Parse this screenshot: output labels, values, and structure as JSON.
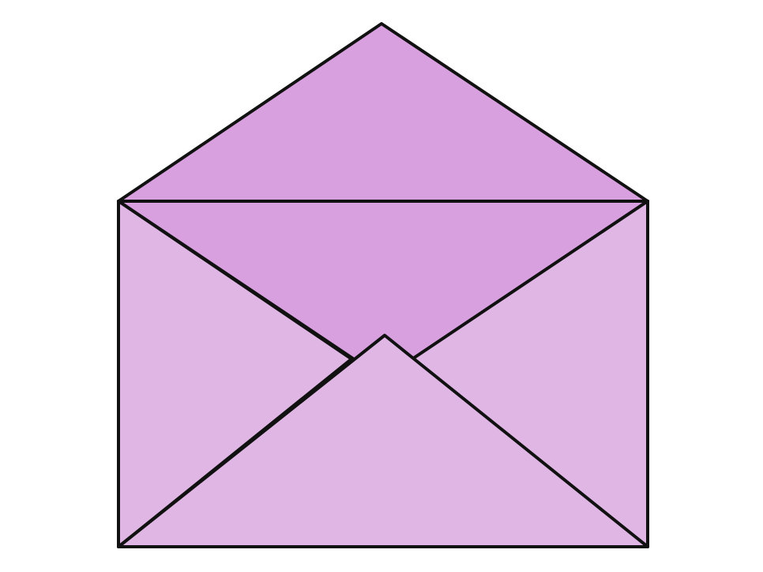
{
  "illustration": {
    "subject": "open envelope",
    "icon": "envelope-open-icon",
    "colors": {
      "background": "#ffffff",
      "outline": "#111111",
      "flap_and_interior": "#d9a0e0",
      "front_panels": "#dfb6e4"
    }
  }
}
